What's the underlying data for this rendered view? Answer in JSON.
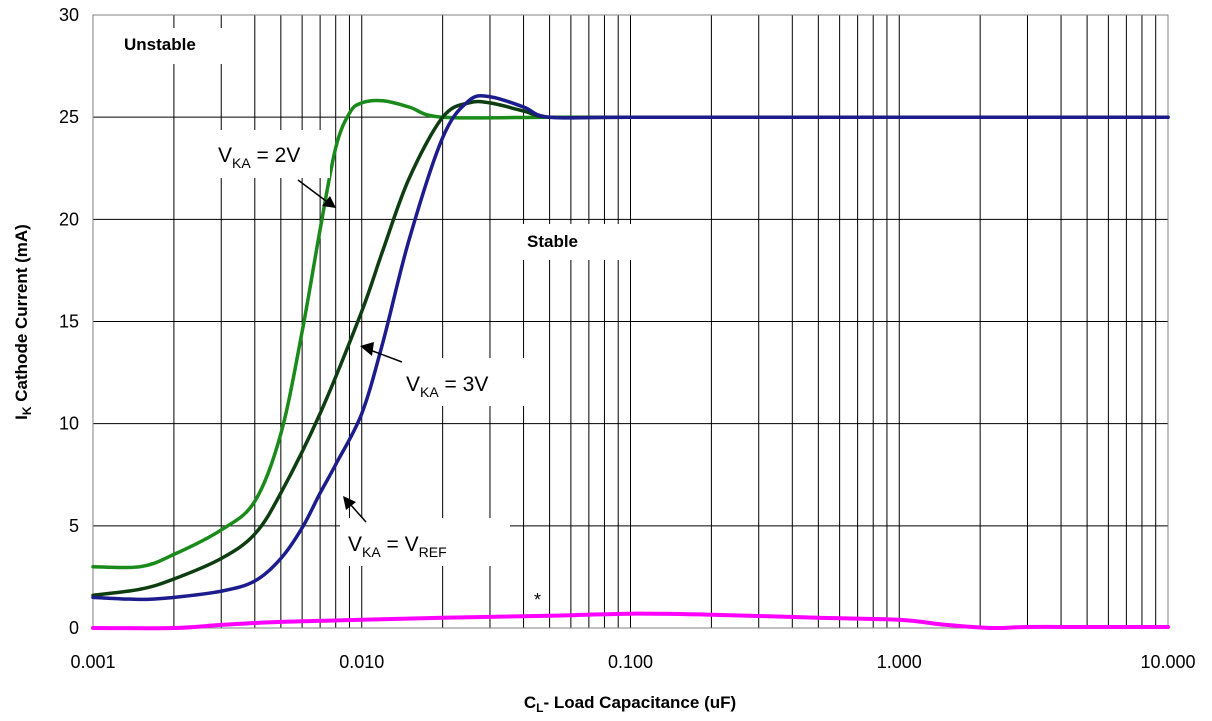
{
  "chart_data": {
    "type": "line",
    "xscale": "log",
    "xlim": [
      0.001,
      10
    ],
    "ylim": [
      0,
      30
    ],
    "grid": true,
    "x_ticks": [
      "0.001",
      "0.010",
      "0.100",
      "1.000",
      "10.000"
    ],
    "y_ticks": [
      "0",
      "5",
      "10",
      "15",
      "20",
      "25",
      "30"
    ],
    "xlabel": {
      "main": "C",
      "sub": "L",
      "rest": "- Load Capacitance (uF)"
    },
    "ylabel": {
      "main": "I",
      "sub": "K",
      "rest": " Cathode Current (mA)"
    },
    "regions": {
      "unstable": "Unstable",
      "stable": "Stable"
    },
    "annotations": {
      "vka_2v": {
        "v": "V",
        "sub": "KA",
        "rest": " = 2V"
      },
      "vka_3v": {
        "v": "V",
        "sub": "KA",
        "rest": " = 3V"
      },
      "vka_vref": {
        "v": "V",
        "sub": "KA",
        "rest": " = V",
        "sub2": "REF"
      },
      "star": "*"
    },
    "series": [
      {
        "color": "#1a8a1a",
        "points": [
          [
            0.001,
            3.0
          ],
          [
            0.0015,
            3.0
          ],
          [
            0.002,
            3.6
          ],
          [
            0.003,
            4.8
          ],
          [
            0.004,
            6.2
          ],
          [
            0.005,
            9.5
          ],
          [
            0.006,
            14.5
          ],
          [
            0.007,
            19.5
          ],
          [
            0.008,
            23.5
          ],
          [
            0.009,
            25.2
          ],
          [
            0.01,
            25.7
          ],
          [
            0.012,
            25.8
          ],
          [
            0.015,
            25.5
          ],
          [
            0.02,
            25.0
          ],
          [
            0.05,
            25.0
          ],
          [
            0.1,
            25.0
          ],
          [
            1.0,
            25.0
          ],
          [
            10.0,
            25.0
          ]
        ]
      },
      {
        "color": "#0f3d12",
        "points": [
          [
            0.001,
            1.6
          ],
          [
            0.0015,
            1.9
          ],
          [
            0.002,
            2.4
          ],
          [
            0.003,
            3.4
          ],
          [
            0.004,
            4.6
          ],
          [
            0.005,
            6.6
          ],
          [
            0.007,
            10.5
          ],
          [
            0.01,
            15.5
          ],
          [
            0.012,
            18.5
          ],
          [
            0.015,
            22.0
          ],
          [
            0.02,
            25.0
          ],
          [
            0.025,
            25.7
          ],
          [
            0.03,
            25.7
          ],
          [
            0.04,
            25.3
          ],
          [
            0.05,
            25.0
          ],
          [
            0.1,
            25.0
          ],
          [
            1.0,
            25.0
          ],
          [
            10.0,
            25.0
          ]
        ]
      },
      {
        "color": "#1c1c8c",
        "points": [
          [
            0.001,
            1.5
          ],
          [
            0.0015,
            1.4
          ],
          [
            0.002,
            1.5
          ],
          [
            0.003,
            1.8
          ],
          [
            0.004,
            2.3
          ],
          [
            0.005,
            3.4
          ],
          [
            0.006,
            4.9
          ],
          [
            0.007,
            6.6
          ],
          [
            0.008,
            8.0
          ],
          [
            0.01,
            10.5
          ],
          [
            0.012,
            14.0
          ],
          [
            0.015,
            19.0
          ],
          [
            0.02,
            24.0
          ],
          [
            0.025,
            25.8
          ],
          [
            0.03,
            26.0
          ],
          [
            0.04,
            25.5
          ],
          [
            0.05,
            25.0
          ],
          [
            0.1,
            25.0
          ],
          [
            1.0,
            25.0
          ],
          [
            10.0,
            25.0
          ]
        ]
      },
      {
        "color": "#ff00ff",
        "points": [
          [
            0.001,
            0.0
          ],
          [
            0.002,
            0.0
          ],
          [
            0.003,
            0.15
          ],
          [
            0.005,
            0.3
          ],
          [
            0.01,
            0.4
          ],
          [
            0.02,
            0.5
          ],
          [
            0.05,
            0.6
          ],
          [
            0.1,
            0.7
          ],
          [
            0.2,
            0.65
          ],
          [
            0.5,
            0.5
          ],
          [
            1.0,
            0.4
          ],
          [
            1.5,
            0.15
          ],
          [
            2.2,
            0.0
          ],
          [
            3.0,
            0.05
          ],
          [
            5.0,
            0.05
          ],
          [
            10.0,
            0.05
          ]
        ]
      }
    ]
  }
}
